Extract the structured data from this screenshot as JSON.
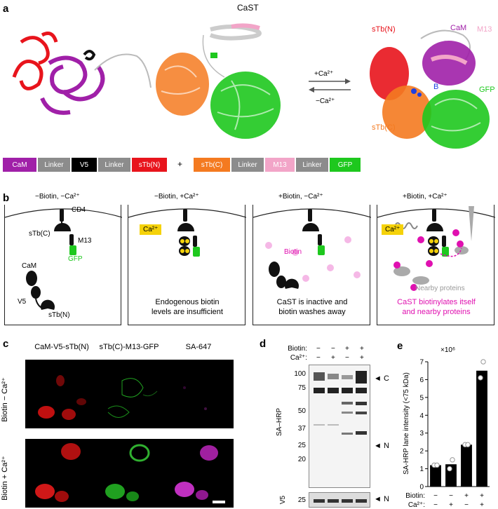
{
  "panel_a": {
    "letter": "a",
    "title": "CaST",
    "plus_ca": "+Ca²⁺",
    "minus_ca": "−Ca²⁺",
    "struct_labels": {
      "stbn": "sTb(N)",
      "cam": "CaM",
      "m13": "M13",
      "gfp": "GFP",
      "stbc": "sTb(C)",
      "b": "B"
    },
    "construct1": [
      "CaM",
      "Linker",
      "V5",
      "Linker",
      "sTb(N)"
    ],
    "plus_sign": "+",
    "construct2": [
      "sTb(C)",
      "Linker",
      "M13",
      "Linker",
      "GFP"
    ],
    "colors": {
      "cam": "#a020a8",
      "linker": "#8c8c8c",
      "v5": "#000000",
      "stb": "#e8141c",
      "stbc": "#f47a20",
      "m13": "#f2a5c8",
      "gfp": "#1ec81e"
    }
  },
  "panel_b": {
    "letter": "b",
    "conditions": [
      "−Biotin, −Ca²⁺",
      "−Biotin, +Ca²⁺",
      "+Biotin, −Ca²⁺",
      "+Biotin, +Ca²⁺"
    ],
    "labels": {
      "cd4": "CD4",
      "stbc": "sTb(C)",
      "m13": "M13",
      "gfp": "GFP",
      "cam": "CaM",
      "v5": "V5",
      "stbn": "sTb(N)",
      "ca": "Ca²⁺",
      "biotin": "Biotin",
      "nearby": "Nearby proteins"
    },
    "captions": [
      "Endogenous biotin\nlevels are insufficient",
      "CaST is inactive and\nbiotin washes away",
      "CaST biotinylates itself\nand nearby proteins"
    ]
  },
  "panel_c": {
    "letter": "c",
    "columns": [
      "CaM-V5-sTb(N)",
      "sTb(C)-M13-GFP",
      "SA-647"
    ],
    "rows": [
      "Biotin − Ca²⁺",
      "Biotin + Ca²⁺"
    ]
  },
  "panel_d": {
    "letter": "d",
    "biotin_label": "Biotin:",
    "ca_label": "Ca²⁺:",
    "biotin_signs": [
      "−",
      "−",
      "+",
      "+"
    ],
    "ca_signs": [
      "−",
      "+",
      "−",
      "+"
    ],
    "mw_markers": [
      "100",
      "75",
      "50",
      "37",
      "25",
      "20"
    ],
    "ylabel": "SA–HRP",
    "band_c": "C",
    "band_n": "N",
    "v5_label": "V5",
    "v5_marker": "25",
    "v5_band": "N"
  },
  "chart_data": {
    "type": "bar",
    "panel_letter": "e",
    "categories": [
      "1",
      "2",
      "3",
      "4"
    ],
    "values": [
      1.2,
      1.25,
      2.35,
      6.5
    ],
    "points": [
      [
        1.2,
        1.2
      ],
      [
        1.0,
        1.5
      ],
      [
        2.35,
        2.35
      ],
      [
        6.1,
        7.0
      ]
    ],
    "ylabel": "SA-HRP lane intensity (<75 kDa)",
    "exponent": "×10⁶",
    "ylim": [
      0,
      7
    ],
    "yticks": [
      "0",
      "1",
      "2",
      "3",
      "4",
      "5",
      "6",
      "7"
    ],
    "row_labels": [
      "Biotin:",
      "Ca²⁺:"
    ],
    "biotin_signs": [
      "−",
      "−",
      "+",
      "+"
    ],
    "ca_signs": [
      "−",
      "+",
      "−",
      "+"
    ]
  }
}
